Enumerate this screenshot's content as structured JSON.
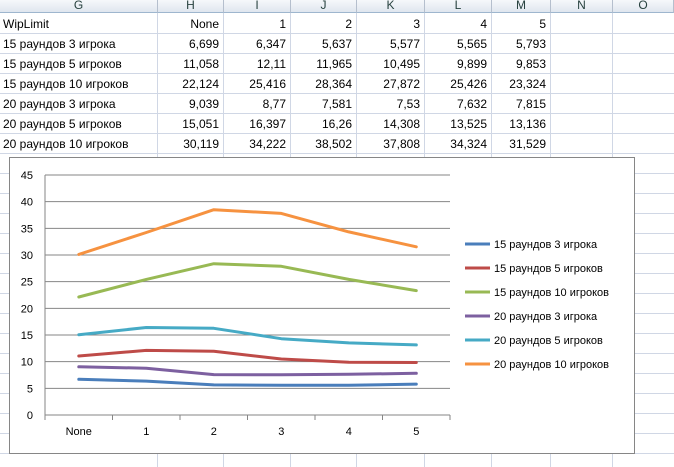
{
  "columns": [
    "G",
    "H",
    "I",
    "J",
    "K",
    "L",
    "M",
    "N",
    "O"
  ],
  "header_row": {
    "label": "WipLimit",
    "values": [
      "None",
      "1",
      "2",
      "3",
      "4",
      "5"
    ]
  },
  "rows": [
    {
      "label": "15 раундов 3 игрока",
      "values": [
        "6,699",
        "6,347",
        "5,637",
        "5,577",
        "5,565",
        "5,793"
      ]
    },
    {
      "label": "15 раундов 5 игроков",
      "values": [
        "11,058",
        "12,11",
        "11,965",
        "10,495",
        "9,899",
        "9,853"
      ]
    },
    {
      "label": "15 раундов 10 игроков",
      "values": [
        "22,124",
        "25,416",
        "28,364",
        "27,872",
        "25,426",
        "23,324"
      ]
    },
    {
      "label": "20 раундов 3 игрока",
      "values": [
        "9,039",
        "8,77",
        "7,581",
        "7,53",
        "7,632",
        "7,815"
      ]
    },
    {
      "label": "20 раундов 5 игроков",
      "values": [
        "15,051",
        "16,397",
        "16,26",
        "14,308",
        "13,525",
        "13,136"
      ]
    },
    {
      "label": "20 раундов 10 игроков",
      "values": [
        "30,119",
        "34,222",
        "38,502",
        "37,808",
        "34,324",
        "31,529"
      ]
    }
  ],
  "chart_data": {
    "type": "line",
    "categories": [
      "None",
      "1",
      "2",
      "3",
      "4",
      "5"
    ],
    "ylim": [
      0,
      45
    ],
    "yticks": [
      "0",
      "5",
      "10",
      "15",
      "20",
      "25",
      "30",
      "35",
      "40",
      "45"
    ],
    "grid": true,
    "legend_position": "right",
    "series": [
      {
        "name": "15 раундов 3 игрока",
        "color": "#4a7ebb",
        "values": [
          6.699,
          6.347,
          5.637,
          5.577,
          5.565,
          5.793
        ]
      },
      {
        "name": "15 раундов 5 игроков",
        "color": "#be4b48",
        "values": [
          11.058,
          12.11,
          11.965,
          10.495,
          9.899,
          9.853
        ]
      },
      {
        "name": "15 раундов 10 игроков",
        "color": "#98b954",
        "values": [
          22.124,
          25.416,
          28.364,
          27.872,
          25.426,
          23.324
        ]
      },
      {
        "name": "20 раундов 3 игрока",
        "color": "#7d60a0",
        "values": [
          9.039,
          8.77,
          7.581,
          7.53,
          7.632,
          7.815
        ]
      },
      {
        "name": "20 раундов 5 игроков",
        "color": "#46aac5",
        "values": [
          15.051,
          16.397,
          16.26,
          14.308,
          13.525,
          13.136
        ]
      },
      {
        "name": "20 раундов 10 игроков",
        "color": "#f69240",
        "values": [
          30.119,
          34.222,
          38.502,
          37.808,
          34.324,
          31.529
        ]
      }
    ]
  }
}
